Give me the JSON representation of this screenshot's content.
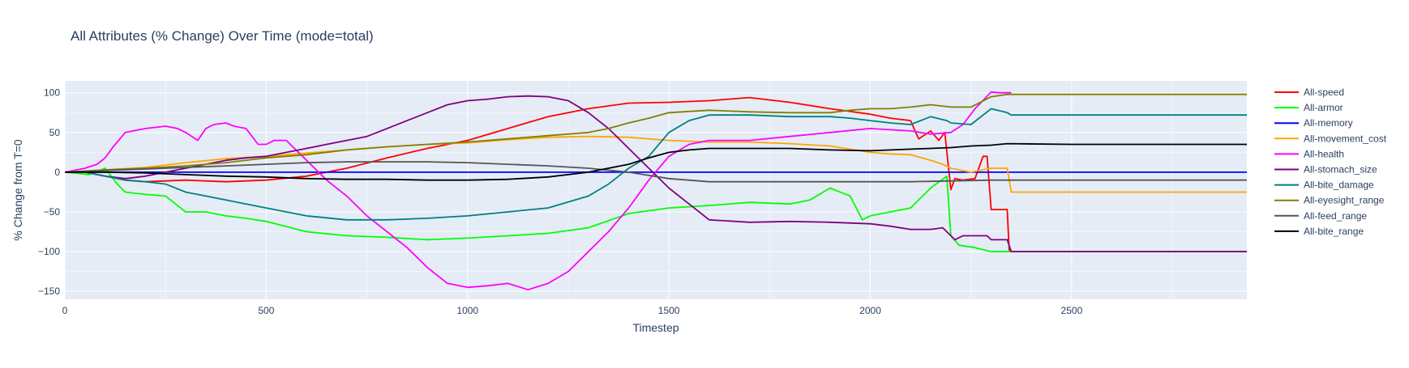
{
  "chart_data": {
    "type": "line",
    "title": "All Attributes (% Change) Over Time (mode=total)",
    "xlabel": "Timestep",
    "ylabel": "% Change from T=0",
    "xlim": [
      0,
      2935
    ],
    "ylim": [
      -160,
      115
    ],
    "xticks": [
      0,
      500,
      1000,
      1500,
      2000,
      2500
    ],
    "yticks": [
      100,
      50,
      0,
      -50,
      -100,
      -150
    ],
    "grid": true,
    "legend_position": "right",
    "series": [
      {
        "name": "All-speed",
        "color": "#ff0000",
        "x": [
          0,
          50,
          100,
          150,
          200,
          300,
          400,
          500,
          600,
          700,
          800,
          900,
          1000,
          1100,
          1200,
          1300,
          1400,
          1500,
          1600,
          1700,
          1800,
          1900,
          2000,
          2050,
          2100,
          2120,
          2150,
          2170,
          2185,
          2200,
          2210,
          2230,
          2260,
          2280,
          2290,
          2300,
          2340,
          2345,
          2935
        ],
        "y": [
          0,
          0,
          -5,
          -10,
          -12,
          -10,
          -12,
          -10,
          -5,
          5,
          18,
          30,
          40,
          55,
          70,
          80,
          87,
          88,
          90,
          94,
          88,
          80,
          73,
          68,
          65,
          42,
          52,
          40,
          50,
          -22,
          -8,
          -10,
          -8,
          20,
          20,
          -47,
          -47,
          -100,
          -100
        ]
      },
      {
        "name": "All-armor",
        "color": "#00ff00",
        "x": [
          0,
          60,
          100,
          130,
          150,
          200,
          250,
          300,
          350,
          400,
          450,
          500,
          600,
          700,
          800,
          900,
          1000,
          1100,
          1200,
          1300,
          1400,
          1500,
          1600,
          1700,
          1800,
          1850,
          1900,
          1950,
          1980,
          2000,
          2050,
          2100,
          2150,
          2190,
          2200,
          2220,
          2260,
          2300,
          2935
        ],
        "y": [
          0,
          -3,
          5,
          -15,
          -25,
          -28,
          -30,
          -50,
          -50,
          -55,
          -58,
          -62,
          -75,
          -80,
          -82,
          -85,
          -83,
          -80,
          -77,
          -70,
          -52,
          -45,
          -42,
          -38,
          -40,
          -35,
          -20,
          -30,
          -60,
          -55,
          -50,
          -45,
          -20,
          -5,
          -80,
          -92,
          -95,
          -100,
          -100
        ]
      },
      {
        "name": "All-memory",
        "color": "#0000ff",
        "x": [
          0,
          2935
        ],
        "y": [
          0,
          0
        ]
      },
      {
        "name": "All-movement_cost",
        "color": "#ffa500",
        "x": [
          0,
          100,
          200,
          300,
          400,
          500,
          600,
          700,
          800,
          900,
          1000,
          1100,
          1200,
          1300,
          1400,
          1500,
          1600,
          1700,
          1800,
          1900,
          1950,
          2000,
          2050,
          2100,
          2150,
          2180,
          2200,
          2250,
          2300,
          2340,
          2350,
          2935
        ],
        "y": [
          0,
          3,
          6,
          12,
          17,
          20,
          24,
          28,
          32,
          35,
          37,
          41,
          44,
          45,
          44,
          40,
          38,
          38,
          36,
          33,
          29,
          25,
          23,
          22,
          15,
          10,
          5,
          0,
          5,
          5,
          -25,
          -25
        ]
      },
      {
        "name": "All-health",
        "color": "#ff00ff",
        "x": [
          0,
          50,
          80,
          100,
          120,
          150,
          200,
          250,
          280,
          300,
          330,
          350,
          370,
          400,
          420,
          450,
          480,
          500,
          520,
          550,
          570,
          600,
          650,
          700,
          750,
          800,
          850,
          900,
          950,
          1000,
          1050,
          1100,
          1150,
          1200,
          1250,
          1300,
          1350,
          1400,
          1450,
          1500,
          1550,
          1600,
          1700,
          1800,
          1900,
          2000,
          2100,
          2150,
          2200,
          2230,
          2260,
          2300,
          2320,
          2350
        ],
        "y": [
          0,
          5,
          10,
          18,
          32,
          50,
          55,
          58,
          55,
          50,
          40,
          55,
          60,
          62,
          58,
          55,
          35,
          35,
          40,
          40,
          30,
          15,
          -10,
          -30,
          -55,
          -75,
          -95,
          -120,
          -140,
          -145,
          -143,
          -140,
          -148,
          -140,
          -125,
          -100,
          -75,
          -45,
          -10,
          20,
          35,
          40,
          40,
          45,
          50,
          55,
          52,
          48,
          50,
          60,
          80,
          101,
          100,
          100
        ]
      },
      {
        "name": "All-stomach_size",
        "color": "#800080",
        "x": [
          0,
          50,
          100,
          150,
          200,
          250,
          300,
          350,
          400,
          450,
          500,
          550,
          600,
          650,
          700,
          750,
          800,
          850,
          900,
          950,
          1000,
          1050,
          1100,
          1150,
          1200,
          1250,
          1300,
          1350,
          1400,
          1450,
          1500,
          1550,
          1600,
          1700,
          1800,
          1900,
          2000,
          2050,
          2100,
          2150,
          2180,
          2200,
          2210,
          2230,
          2260,
          2290,
          2300,
          2340,
          2350,
          2935
        ],
        "y": [
          0,
          0,
          -5,
          -8,
          -5,
          0,
          5,
          10,
          15,
          18,
          20,
          25,
          30,
          35,
          40,
          45,
          55,
          65,
          75,
          85,
          90,
          92,
          95,
          96,
          95,
          90,
          75,
          55,
          30,
          5,
          -20,
          -40,
          -60,
          -63,
          -62,
          -63,
          -65,
          -68,
          -72,
          -72,
          -70,
          -80,
          -85,
          -80,
          -80,
          -80,
          -85,
          -85,
          -100,
          -100
        ]
      },
      {
        "name": "All-bite_damage",
        "color": "#008080",
        "x": [
          0,
          50,
          100,
          150,
          200,
          250,
          300,
          350,
          400,
          450,
          500,
          600,
          700,
          800,
          900,
          1000,
          1100,
          1200,
          1300,
          1350,
          1400,
          1450,
          1500,
          1550,
          1600,
          1700,
          1800,
          1900,
          1950,
          2000,
          2050,
          2100,
          2150,
          2190,
          2200,
          2250,
          2300,
          2340,
          2350,
          2935
        ],
        "y": [
          0,
          0,
          -5,
          -10,
          -12,
          -15,
          -25,
          -30,
          -35,
          -40,
          -45,
          -55,
          -60,
          -60,
          -58,
          -55,
          -50,
          -45,
          -30,
          -15,
          5,
          20,
          50,
          65,
          72,
          72,
          70,
          70,
          68,
          65,
          62,
          60,
          70,
          65,
          62,
          60,
          80,
          75,
          72,
          72
        ]
      },
      {
        "name": "All-eyesight_range",
        "color": "#808000",
        "x": [
          0,
          100,
          200,
          300,
          400,
          500,
          600,
          700,
          800,
          900,
          1000,
          1100,
          1200,
          1300,
          1350,
          1400,
          1450,
          1500,
          1600,
          1700,
          1800,
          1900,
          1950,
          2000,
          2050,
          2100,
          2150,
          2200,
          2250,
          2300,
          2340,
          2935
        ],
        "y": [
          0,
          3,
          5,
          8,
          12,
          18,
          22,
          28,
          32,
          35,
          38,
          42,
          46,
          50,
          55,
          62,
          68,
          75,
          78,
          76,
          75,
          75,
          78,
          80,
          80,
          82,
          85,
          82,
          82,
          95,
          98,
          98
        ]
      },
      {
        "name": "All-feed_range",
        "color": "#555555",
        "x": [
          0,
          100,
          200,
          300,
          400,
          500,
          600,
          700,
          800,
          900,
          1000,
          1100,
          1200,
          1300,
          1400,
          1500,
          1600,
          1700,
          1800,
          1900,
          2000,
          2100,
          2200,
          2300,
          2935
        ],
        "y": [
          0,
          2,
          4,
          6,
          8,
          10,
          12,
          13,
          13,
          13,
          12,
          10,
          8,
          5,
          0,
          -8,
          -12,
          -12,
          -12,
          -12,
          -12,
          -12,
          -11,
          -10,
          -10
        ]
      },
      {
        "name": "All-bite_range",
        "color": "#000000",
        "x": [
          0,
          100,
          200,
          300,
          400,
          500,
          600,
          700,
          800,
          900,
          1000,
          1100,
          1200,
          1300,
          1400,
          1450,
          1500,
          1550,
          1600,
          1700,
          1800,
          1900,
          2000,
          2100,
          2150,
          2200,
          2250,
          2300,
          2340,
          2500,
          2935
        ],
        "y": [
          0,
          0,
          -1,
          -3,
          -5,
          -6,
          -8,
          -9,
          -9,
          -10,
          -10,
          -9,
          -6,
          0,
          10,
          18,
          25,
          28,
          30,
          30,
          30,
          28,
          27,
          29,
          30,
          31,
          33,
          34,
          36,
          35,
          35
        ]
      }
    ]
  }
}
